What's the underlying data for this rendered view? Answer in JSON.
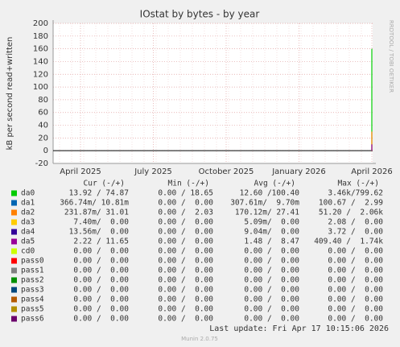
{
  "chart_data": {
    "type": "line",
    "title": "IOstat by bytes - by year",
    "y_label": "kB per second read+written",
    "side_text": "RRDTOOL / TOBI OETIKER",
    "x": [
      "April 2025",
      "July 2025",
      "October 2025",
      "January 2026",
      "April 2026"
    ],
    "ylim": [
      -20,
      200
    ],
    "yticks": [
      -20,
      0,
      20,
      40,
      60,
      80,
      100,
      120,
      140,
      160,
      180,
      200
    ],
    "grid": true,
    "columns": [
      "Cur (-/+)",
      "Min (-/+)",
      "Avg (-/+)",
      "Max (-/+)"
    ],
    "series": [
      {
        "name": "da0",
        "color": "#00cc00",
        "values": [
          0,
          0,
          0,
          0,
          160
        ],
        "cur": "13.92 / 74.87",
        "min": "0.00 / 18.65",
        "avg": "12.60 /100.40",
        "max": "3.46k/799.62"
      },
      {
        "name": "da1",
        "color": "#0066b3",
        "values": [
          0,
          0,
          0,
          0,
          0
        ],
        "cur": "366.74m/ 10.81m",
        "min": "0.00 /  0.00",
        "avg": "307.61m/  9.70m",
        "max": "100.67 /  2.99"
      },
      {
        "name": "da2",
        "color": "#ff8000",
        "values": [
          0,
          0,
          0,
          0,
          30
        ],
        "cur": "231.87m/ 31.01",
        "min": "0.00 /  2.03",
        "avg": "170.12m/ 27.41",
        "max": "51.20 /  2.06k"
      },
      {
        "name": "da3",
        "color": "#ffcc00",
        "values": [
          0,
          0,
          0,
          0,
          0
        ],
        "cur": "7.40m/  0.00",
        "min": "0.00 /  0.00",
        "avg": "5.09m/  0.00",
        "max": "2.08 /  0.00"
      },
      {
        "name": "da4",
        "color": "#330099",
        "values": [
          0,
          0,
          0,
          0,
          0
        ],
        "cur": "13.56m/  0.00",
        "min": "0.00 /  0.00",
        "avg": "9.04m/  0.00",
        "max": "3.72 /  0.00"
      },
      {
        "name": "da5",
        "color": "#990099",
        "values": [
          0,
          0,
          0,
          0,
          10
        ],
        "cur": "2.22 / 11.65",
        "min": "0.00 /  0.00",
        "avg": "1.48 /  8.47",
        "max": "409.40 /  1.74k"
      },
      {
        "name": "cd0",
        "color": "#ccff00",
        "values": [
          0,
          0,
          0,
          0,
          0
        ],
        "cur": "0.00 /  0.00",
        "min": "0.00 /  0.00",
        "avg": "0.00 /  0.00",
        "max": "0.00 /  0.00"
      },
      {
        "name": "pass0",
        "color": "#ff0000",
        "values": [
          0,
          0,
          0,
          0,
          0
        ],
        "cur": "0.00 /  0.00",
        "min": "0.00 /  0.00",
        "avg": "0.00 /  0.00",
        "max": "0.00 /  0.00"
      },
      {
        "name": "pass1",
        "color": "#808080",
        "values": [
          0,
          0,
          0,
          0,
          0
        ],
        "cur": "0.00 /  0.00",
        "min": "0.00 /  0.00",
        "avg": "0.00 /  0.00",
        "max": "0.00 /  0.00"
      },
      {
        "name": "pass2",
        "color": "#008f00",
        "values": [
          0,
          0,
          0,
          0,
          0
        ],
        "cur": "0.00 /  0.00",
        "min": "0.00 /  0.00",
        "avg": "0.00 /  0.00",
        "max": "0.00 /  0.00"
      },
      {
        "name": "pass3",
        "color": "#00487d",
        "values": [
          0,
          0,
          0,
          0,
          0
        ],
        "cur": "0.00 /  0.00",
        "min": "0.00 /  0.00",
        "avg": "0.00 /  0.00",
        "max": "0.00 /  0.00"
      },
      {
        "name": "pass4",
        "color": "#b35a00",
        "values": [
          0,
          0,
          0,
          0,
          0
        ],
        "cur": "0.00 /  0.00",
        "min": "0.00 /  0.00",
        "avg": "0.00 /  0.00",
        "max": "0.00 /  0.00"
      },
      {
        "name": "pass5",
        "color": "#b38f00",
        "values": [
          0,
          0,
          0,
          0,
          0
        ],
        "cur": "0.00 /  0.00",
        "min": "0.00 /  0.00",
        "avg": "0.00 /  0.00",
        "max": "0.00 /  0.00"
      },
      {
        "name": "pass6",
        "color": "#6b006b",
        "values": [
          0,
          0,
          0,
          0,
          0
        ],
        "cur": "0.00 /  0.00",
        "min": "0.00 /  0.00",
        "avg": "0.00 /  0.00",
        "max": "0.00 /  0.00"
      }
    ],
    "last_update": "Last update: Fri Apr 17 10:15:06 2026",
    "footer": "Munin 2.0.75"
  }
}
